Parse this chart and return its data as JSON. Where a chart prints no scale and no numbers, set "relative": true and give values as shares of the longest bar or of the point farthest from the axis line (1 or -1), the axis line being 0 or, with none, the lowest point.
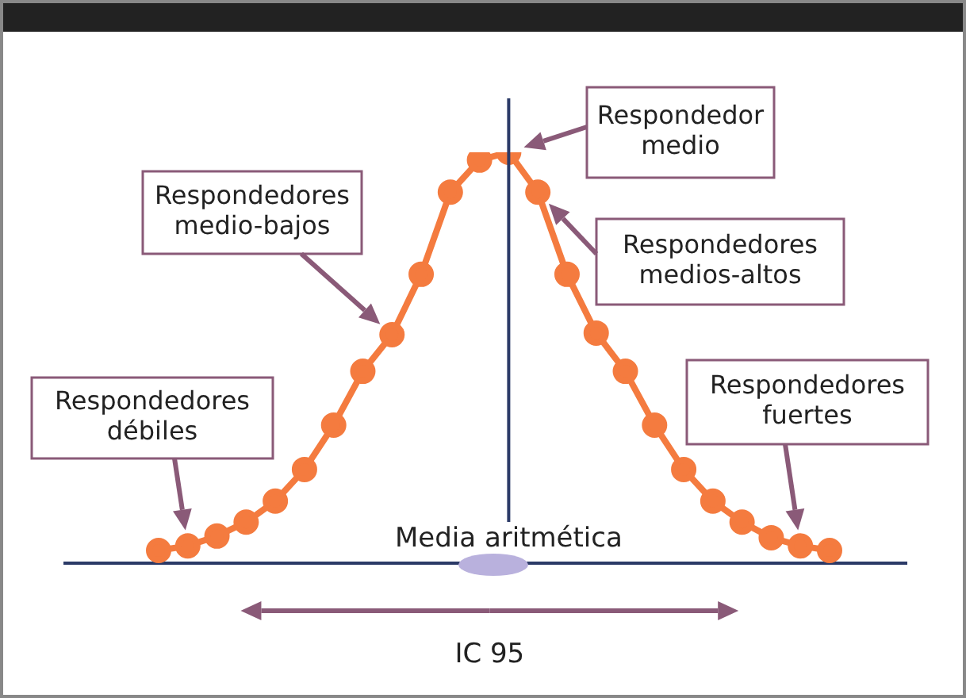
{
  "chart_data": {
    "type": "line",
    "relative": true,
    "marker": "circle",
    "legend": false,
    "categories": [
      null,
      null,
      null,
      null,
      null,
      null,
      null,
      null,
      null,
      null,
      null,
      null,
      null,
      null,
      null,
      null,
      null,
      null,
      null,
      null,
      null,
      null,
      null,
      null
    ],
    "series": [
      {
        "color": "#f47b3f",
        "values": [
          0.031,
          0.042,
          0.066,
          0.1,
          0.151,
          0.228,
          0.336,
          0.467,
          0.556,
          0.703,
          0.903,
          0.981,
          1,
          0.903,
          0.703,
          0.56,
          0.467,
          0.336,
          0.228,
          0.151,
          0.1,
          0.062,
          0.042,
          0.031
        ]
      }
    ],
    "annotations": [
      "Respondedor\nmedio",
      "Respondedores\nmedio-bajos",
      "Respondedores\nmedios-altos",
      "Respondedores\ndébiles",
      "Respondedores\nfuertes",
      "Media aritmética",
      "IC 95"
    ]
  }
}
